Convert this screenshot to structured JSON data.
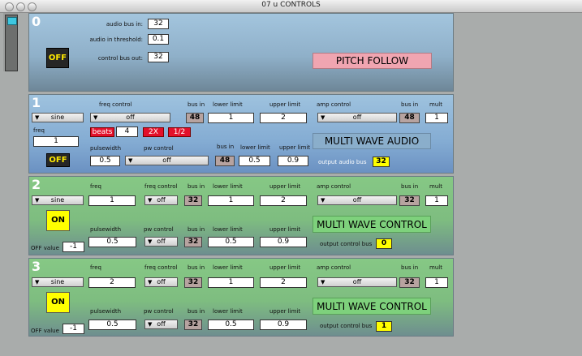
{
  "window": {
    "title": "07 u CONTROLS"
  },
  "panel0": {
    "number": "0",
    "audio_bus_in_label": "audio bus in:",
    "audio_bus_in": "32",
    "audio_threshold_label": "audio in threshold:",
    "audio_threshold": "0.1",
    "control_bus_out_label": "control bus out:",
    "control_bus_out": "32",
    "toggle": "OFF",
    "title": "PITCH FOLLOW"
  },
  "panel1": {
    "number": "1",
    "wave": "sine",
    "freq_label": "freq",
    "freq": "1",
    "freq_control_label": "freq control",
    "freq_control": "off",
    "bus_in_label": "bus in",
    "bus_in": "48",
    "lower_limit_label": "lower limit",
    "lower_limit": "1",
    "upper_limit_label": "upper limit",
    "upper_limit": "2",
    "amp_control_label": "amp control",
    "amp_control": "off",
    "amp_bus_in_label": "bus in",
    "amp_bus_in": "48",
    "mult_label": "mult",
    "mult": "1",
    "beats_label": "beats",
    "beats": "4",
    "x2_label": "2X",
    "half_label": "1/2",
    "pulsewidth_label": "pulsewidth",
    "pulsewidth": "0.5",
    "pw_control_label": "pw control",
    "pw_control": "off",
    "pw_bus_in_label": "bus in",
    "pw_bus_in": "48",
    "pw_lower_limit_label": "lower limit",
    "pw_lower_limit": "0.5",
    "pw_upper_limit_label": "upper limit",
    "pw_upper_limit": "0.9",
    "title": "MULTI WAVE AUDIO",
    "output_bus_label": "output audio bus",
    "output_bus": "32",
    "toggle": "OFF"
  },
  "panel2": {
    "number": "2",
    "wave": "sine",
    "freq_label": "freq",
    "freq": "1",
    "freq_control_label": "freq control",
    "freq_control": "off",
    "bus_in_label": "bus in",
    "bus_in": "32",
    "lower_limit_label": "lower limit",
    "lower_limit": "1",
    "upper_limit_label": "upper limit",
    "upper_limit": "2",
    "amp_control_label": "amp control",
    "amp_control": "off",
    "amp_bus_in_label": "bus in",
    "amp_bus_in": "32",
    "mult_label": "mult",
    "mult": "1",
    "toggle": "ON",
    "pulsewidth_label": "pulsewidth",
    "pulsewidth": "0.5",
    "pw_control_label": "pw control",
    "pw_control": "off",
    "pw_bus_in_label": "bus in",
    "pw_bus_in": "32",
    "pw_lower_limit_label": "lower limit",
    "pw_lower_limit": "0.5",
    "pw_upper_limit_label": "upper limit",
    "pw_upper_limit": "0.9",
    "title": "MULTI WAVE CONTROL",
    "off_value_label": "OFF value",
    "off_value": "-1",
    "output_bus_label": "output control bus",
    "output_bus": "0"
  },
  "panel3": {
    "number": "3",
    "wave": "sine",
    "freq_label": "freq",
    "freq": "2",
    "freq_control_label": "freq control",
    "freq_control": "off",
    "bus_in_label": "bus in",
    "bus_in": "32",
    "lower_limit_label": "lower limit",
    "lower_limit": "1",
    "upper_limit_label": "upper limit",
    "upper_limit": "2",
    "amp_control_label": "amp control",
    "amp_control": "off",
    "amp_bus_in_label": "bus in",
    "amp_bus_in": "32",
    "mult_label": "mult",
    "mult": "1",
    "toggle": "ON",
    "pulsewidth_label": "pulsewidth",
    "pulsewidth": "0.5",
    "pw_control_label": "pw control",
    "pw_control": "off",
    "pw_bus_in_label": "bus in",
    "pw_bus_in": "32",
    "pw_lower_limit_label": "lower limit",
    "pw_lower_limit": "0.5",
    "pw_upper_limit_label": "upper limit",
    "pw_upper_limit": "0.9",
    "title": "MULTI WAVE CONTROL",
    "off_value_label": "OFF value",
    "off_value": "-1",
    "output_bus_label": "output control bus",
    "output_bus": "1"
  }
}
